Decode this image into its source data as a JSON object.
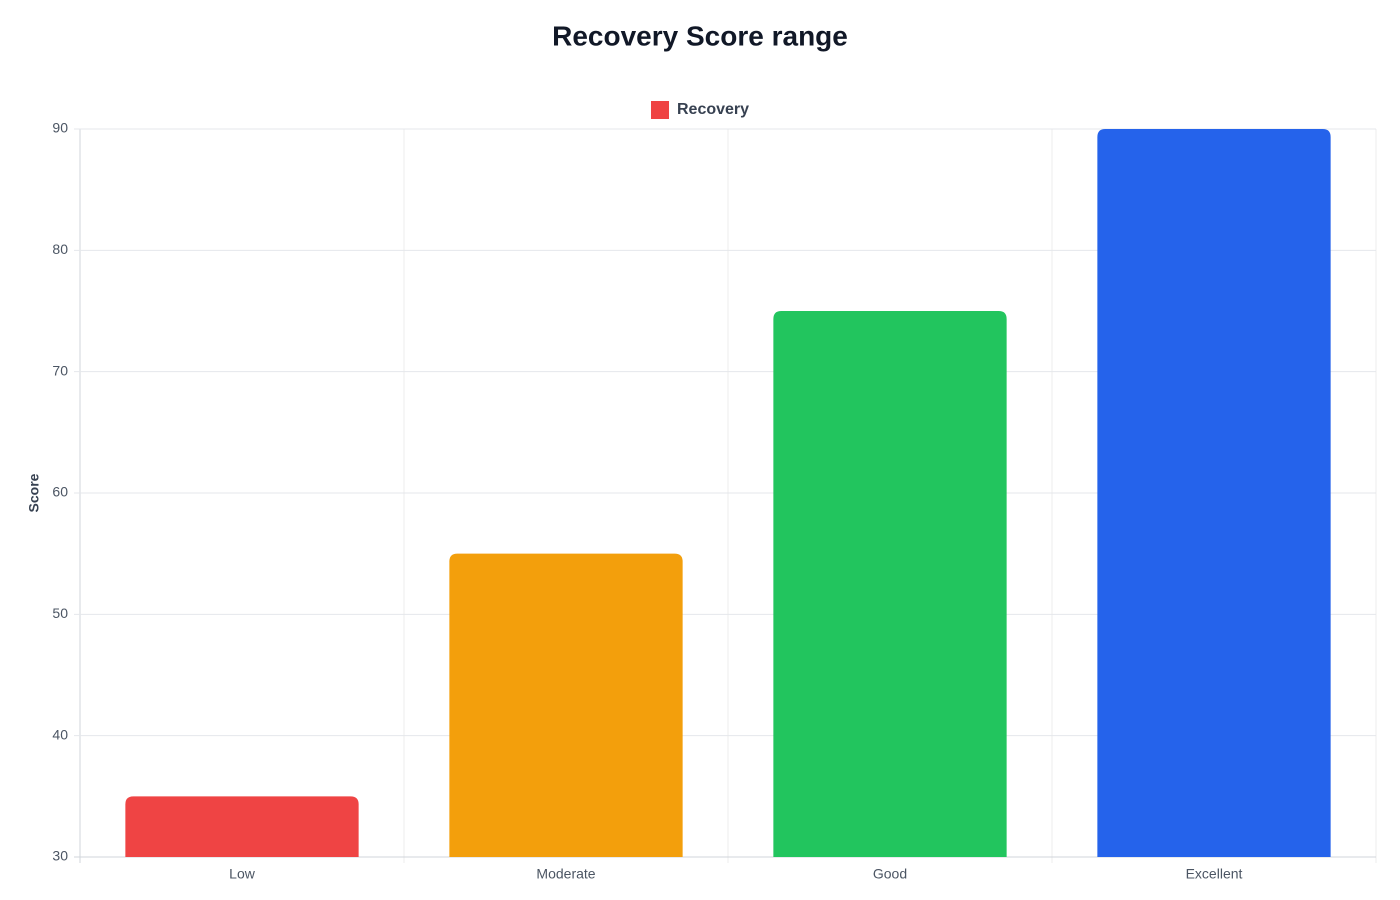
{
  "chart_data": {
    "type": "bar",
    "title": "Recovery Score range",
    "y_label": "Score",
    "categories": [
      "Low",
      "Moderate",
      "Good",
      "Excellent"
    ],
    "series": [
      {
        "name": "Recovery",
        "colors": [
          "#ef4444",
          "#f39f0c",
          "#22c55e",
          "#2563eb"
        ],
        "values": [
          35,
          55,
          75,
          90
        ]
      }
    ],
    "ylim": [
      30,
      90
    ],
    "yticks": [
      30,
      40,
      50,
      60,
      70,
      80,
      90
    ],
    "grid": true,
    "legend": "top"
  }
}
